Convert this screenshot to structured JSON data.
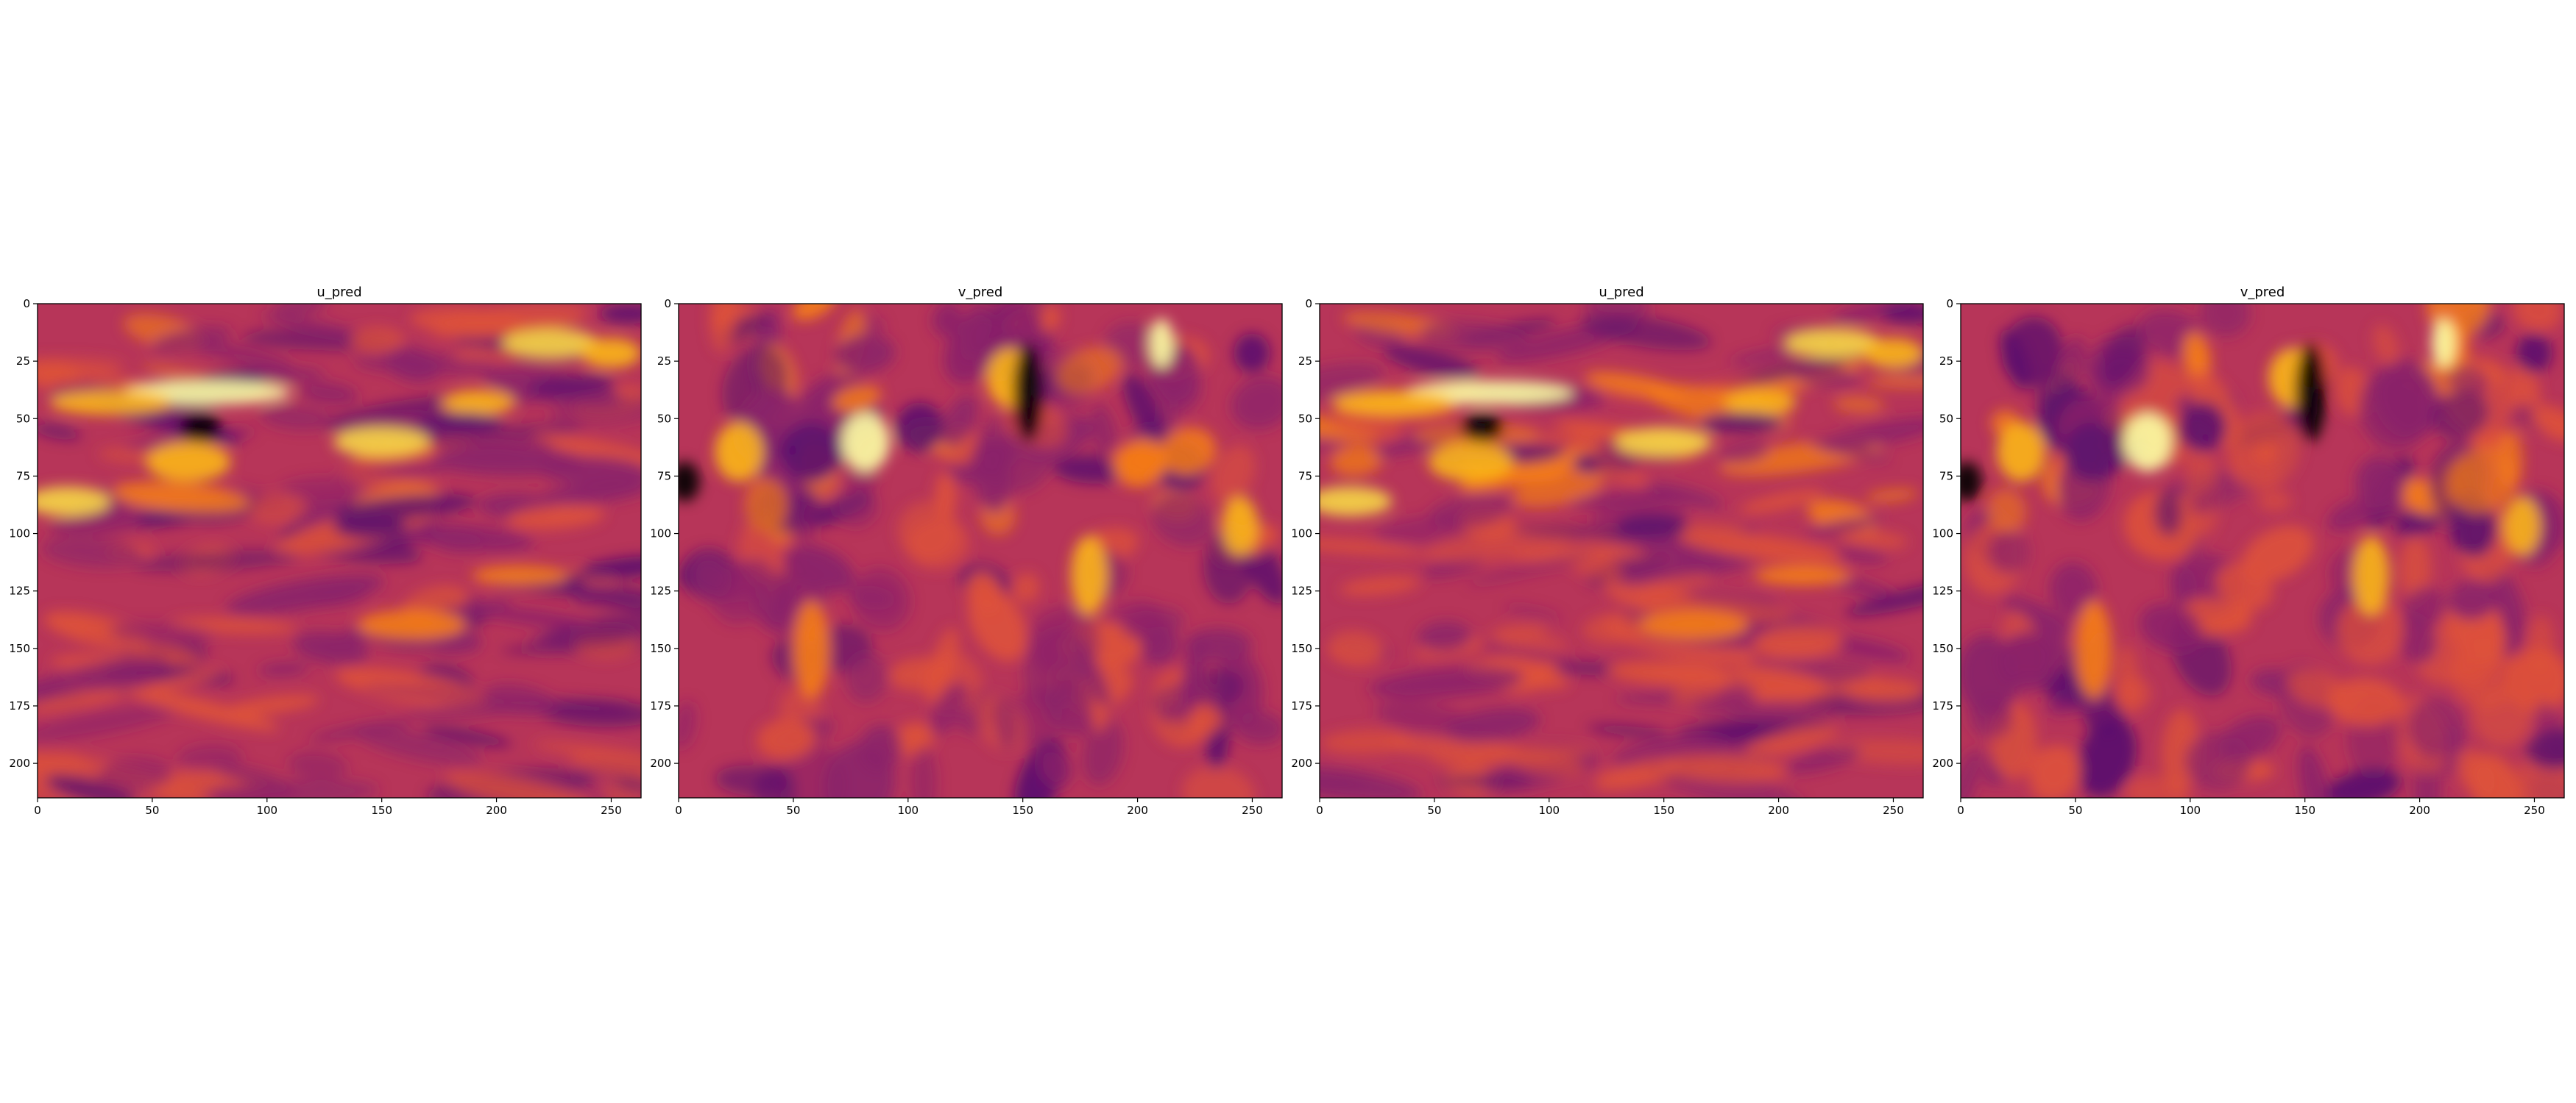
{
  "colors": {
    "background": "#ffffff",
    "axis": "#000000",
    "colormap": [
      "#000004",
      "#2d0b59",
      "#5c126e",
      "#8a226a",
      "#b73559",
      "#dd513a",
      "#f57d15",
      "#fbb61a",
      "#f6d746",
      "#fcffa4"
    ]
  },
  "chart_data": [
    {
      "type": "heatmap",
      "title": "u_pred",
      "colormap": "inferno",
      "grid": false,
      "xlim": [
        0,
        263
      ],
      "ylim": [
        215,
        0
      ],
      "xticks": [
        "0",
        "50",
        "100",
        "150",
        "200",
        "250"
      ],
      "yticks": [
        "0",
        "25",
        "50",
        "75",
        "100",
        "125",
        "150",
        "175",
        "200"
      ]
    },
    {
      "type": "heatmap",
      "title": "v_pred",
      "colormap": "inferno",
      "grid": false,
      "xlim": [
        0,
        263
      ],
      "ylim": [
        215,
        0
      ],
      "xticks": [
        "0",
        "50",
        "100",
        "150",
        "200",
        "250"
      ],
      "yticks": [
        "0",
        "25",
        "50",
        "75",
        "100",
        "125",
        "150",
        "175",
        "200"
      ]
    },
    {
      "type": "heatmap",
      "title": "u_pred",
      "colormap": "inferno",
      "grid": false,
      "xlim": [
        0,
        263
      ],
      "ylim": [
        215,
        0
      ],
      "xticks": [
        "0",
        "50",
        "100",
        "150",
        "200",
        "250"
      ],
      "yticks": [
        "0",
        "25",
        "50",
        "75",
        "100",
        "125",
        "150",
        "175",
        "200"
      ]
    },
    {
      "type": "heatmap",
      "title": "v_pred",
      "colormap": "inferno",
      "grid": false,
      "xlim": [
        0,
        263
      ],
      "ylim": [
        215,
        0
      ],
      "xticks": [
        "0",
        "50",
        "100",
        "150",
        "200",
        "250"
      ],
      "yticks": [
        "0",
        "25",
        "50",
        "75",
        "100",
        "125",
        "150",
        "175",
        "200"
      ]
    }
  ]
}
